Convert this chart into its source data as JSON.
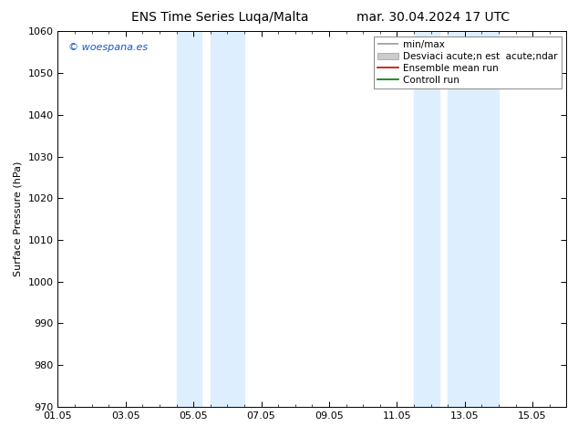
{
  "title_left": "ENS Time Series Luqa/Malta",
  "title_right": "mar. 30.04.2024 17 UTC",
  "ylabel": "Surface Pressure (hPa)",
  "ylim": [
    970,
    1060
  ],
  "yticks": [
    970,
    980,
    990,
    1000,
    1010,
    1020,
    1030,
    1040,
    1050,
    1060
  ],
  "xlim": [
    0,
    15
  ],
  "xtick_labels": [
    "01.05",
    "03.05",
    "05.05",
    "07.05",
    "09.05",
    "11.05",
    "13.05",
    "15.05"
  ],
  "xtick_positions": [
    0,
    2,
    4,
    6,
    8,
    10,
    12,
    14
  ],
  "shade_bands": [
    {
      "xmin": 3.5,
      "xmax": 4.25,
      "color": "#ddeeff"
    },
    {
      "xmin": 4.5,
      "xmax": 5.5,
      "color": "#ddeeff"
    },
    {
      "xmin": 10.5,
      "xmax": 11.25,
      "color": "#ddeeff"
    },
    {
      "xmin": 11.5,
      "xmax": 13.0,
      "color": "#ddeeff"
    }
  ],
  "watermark": "© woespana.es",
  "legend_label_minmax": "min/max",
  "legend_label_std": "Desviaci acute;n est  acute;ndar",
  "legend_label_mean": "Ensemble mean run",
  "legend_label_ctrl": "Controll run",
  "bg_color": "#ffffff",
  "plot_bg_color": "#ffffff",
  "title_fontsize": 10,
  "label_fontsize": 8,
  "tick_fontsize": 8,
  "legend_fontsize": 7.5
}
